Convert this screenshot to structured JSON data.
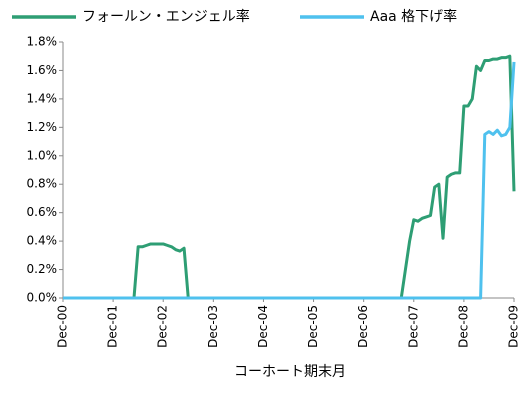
{
  "chart_data": {
    "type": "line",
    "x_label": "コーホート期末月",
    "categories": [
      "Dec-00",
      null,
      null,
      null,
      null,
      null,
      null,
      null,
      null,
      null,
      null,
      null,
      "Dec-01",
      null,
      null,
      null,
      null,
      null,
      null,
      null,
      null,
      null,
      null,
      null,
      "Dec-02",
      null,
      null,
      null,
      null,
      null,
      null,
      null,
      null,
      null,
      null,
      null,
      "Dec-03",
      null,
      null,
      null,
      null,
      null,
      null,
      null,
      null,
      null,
      null,
      null,
      "Dec-04",
      null,
      null,
      null,
      null,
      null,
      null,
      null,
      null,
      null,
      null,
      null,
      "Dec-05",
      null,
      null,
      null,
      null,
      null,
      null,
      null,
      null,
      null,
      null,
      null,
      "Dec-06",
      null,
      null,
      null,
      null,
      null,
      null,
      null,
      null,
      null,
      null,
      null,
      "Dec-07",
      null,
      null,
      null,
      null,
      null,
      null,
      null,
      null,
      null,
      null,
      null,
      "Dec-08",
      null,
      null,
      null,
      null,
      null,
      null,
      null,
      null,
      null,
      null,
      null,
      "Dec-09"
    ],
    "series": [
      {
        "name": "フォールン・エンジェル率",
        "color": "#2e9e74",
        "values": [
          0,
          0,
          0,
          0,
          0,
          0,
          0,
          0,
          0,
          0,
          0,
          0,
          0,
          0,
          0,
          0,
          0,
          0,
          0.36,
          0.36,
          0.37,
          0.38,
          0.38,
          0.38,
          0.38,
          0.37,
          0.36,
          0.34,
          0.33,
          0.35,
          0,
          0,
          0,
          0,
          0,
          0,
          0,
          0,
          0,
          0,
          0,
          0,
          0,
          0,
          0,
          0,
          0,
          0,
          0,
          0,
          0,
          0,
          0,
          0,
          0,
          0,
          0,
          0,
          0,
          0,
          0,
          0,
          0,
          0,
          0,
          0,
          0,
          0,
          0,
          0,
          0,
          0,
          0,
          0,
          0,
          0,
          0,
          0,
          0,
          0,
          0,
          0,
          0.2,
          0.4,
          0.55,
          0.54,
          0.56,
          0.57,
          0.58,
          0.78,
          0.8,
          0.42,
          0.85,
          0.87,
          0.88,
          0.88,
          1.35,
          1.35,
          1.4,
          1.63,
          1.6,
          1.67,
          1.67,
          1.68,
          1.68,
          1.69,
          1.69,
          1.7,
          0.75
        ]
      },
      {
        "name": "Aaa 格下げ率",
        "color": "#4fc1ee",
        "values": [
          0,
          0,
          0,
          0,
          0,
          0,
          0,
          0,
          0,
          0,
          0,
          0,
          0,
          0,
          0,
          0,
          0,
          0,
          0,
          0,
          0,
          0,
          0,
          0,
          0,
          0,
          0,
          0,
          0,
          0,
          0,
          0,
          0,
          0,
          0,
          0,
          0,
          0,
          0,
          0,
          0,
          0,
          0,
          0,
          0,
          0,
          0,
          0,
          0,
          0,
          0,
          0,
          0,
          0,
          0,
          0,
          0,
          0,
          0,
          0,
          0,
          0,
          0,
          0,
          0,
          0,
          0,
          0,
          0,
          0,
          0,
          0,
          0,
          0,
          0,
          0,
          0,
          0,
          0,
          0,
          0,
          0,
          0,
          0,
          0,
          0,
          0,
          0,
          0,
          0,
          0,
          0,
          0,
          0,
          0,
          0,
          0,
          0,
          0,
          0,
          0,
          1.15,
          1.17,
          1.15,
          1.18,
          1.14,
          1.15,
          1.2,
          1.66
        ]
      }
    ],
    "ylim": [
      0,
      1.8
    ],
    "yticks": [
      {
        "value": 0,
        "label": "0.0%"
      },
      {
        "value": 0.2,
        "label": "0.2%"
      },
      {
        "value": 0.4,
        "label": "0.4%"
      },
      {
        "value": 0.6,
        "label": "0.6%"
      },
      {
        "value": 0.8,
        "label": "0.8%"
      },
      {
        "value": 1.0,
        "label": "1.0%"
      },
      {
        "value": 1.2,
        "label": "1.2%"
      },
      {
        "value": 1.4,
        "label": "1.4%"
      },
      {
        "value": 1.6,
        "label": "1.6%"
      },
      {
        "value": 1.8,
        "label": "1.8%"
      }
    ],
    "grid": false,
    "legend": "top"
  }
}
